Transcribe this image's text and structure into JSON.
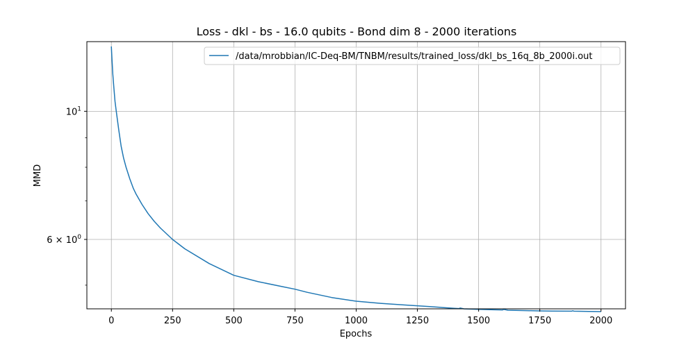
{
  "chart_data": {
    "type": "line",
    "title": "Loss - dkl - bs - 16.0 qubits - Bond dim 8 - 2000 iterations",
    "xlabel": "Epochs",
    "ylabel": "MMD",
    "yscale": "log",
    "xlim": [
      -100,
      2100
    ],
    "ylim": [
      4.55,
      13.2
    ],
    "x_ticks": [
      0,
      250,
      500,
      750,
      1000,
      1250,
      1500,
      1750,
      2000
    ],
    "x_tick_labels": [
      "0",
      "250",
      "500",
      "750",
      "1000",
      "1250",
      "1500",
      "1750",
      "2000"
    ],
    "y_major_ticks": [
      {
        "value": 10,
        "base": "10",
        "exp": "1"
      },
      {
        "value": 6,
        "base": "6 × 10",
        "exp": "0"
      }
    ],
    "y_minor_ticks": [
      5,
      7,
      8,
      9
    ],
    "grid": true,
    "legend_position": "top-right",
    "color": "#1f77b4",
    "series": [
      {
        "name": "/data/mrobbian/IC-Deq-BM/TNBM/results/trained_loss/dkl_bs_16q_8b_2000i.out",
        "x": [
          0,
          3,
          6,
          10,
          15,
          20,
          30,
          40,
          50,
          60,
          75,
          90,
          100,
          125,
          150,
          175,
          200,
          250,
          300,
          400,
          500,
          600,
          700,
          750,
          800,
          900,
          1000,
          1100,
          1200,
          1300,
          1400,
          1420,
          1425,
          1440,
          1500,
          1550,
          1598,
          1602,
          1620,
          1700,
          1750,
          1800,
          1880,
          1884,
          1890,
          1950,
          2000
        ],
        "y": [
          12.95,
          12.2,
          11.6,
          11.0,
          10.4,
          10.0,
          9.3,
          8.7,
          8.3,
          8.0,
          7.65,
          7.35,
          7.2,
          6.9,
          6.65,
          6.45,
          6.28,
          6.0,
          5.78,
          5.45,
          5.2,
          5.07,
          4.97,
          4.92,
          4.86,
          4.76,
          4.69,
          4.65,
          4.62,
          4.59,
          4.56,
          4.555,
          4.565,
          4.55,
          4.54,
          4.535,
          4.53,
          4.54,
          4.525,
          4.518,
          4.513,
          4.51,
          4.508,
          4.515,
          4.507,
          4.503,
          4.5
        ]
      }
    ]
  }
}
